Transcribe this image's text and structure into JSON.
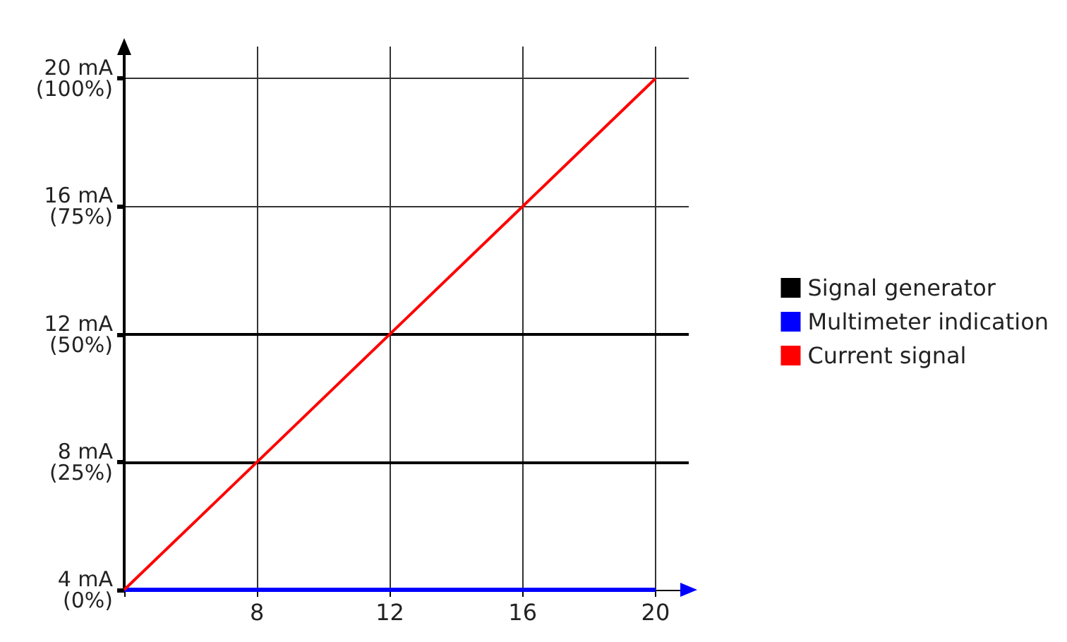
{
  "chart_data": {
    "type": "line",
    "x": [
      4,
      8,
      12,
      16,
      20
    ],
    "series": [
      {
        "name": "Signal generator",
        "color": "#000000",
        "values": [
          null,
          null,
          null,
          null,
          null
        ]
      },
      {
        "name": "Multimeter indication",
        "color": "#0000ff",
        "values": [
          4,
          4,
          4,
          4,
          4
        ]
      },
      {
        "name": "Current signal",
        "color": "#ff0000",
        "values": [
          4,
          8,
          12,
          16,
          20
        ]
      }
    ],
    "xlim": [
      4,
      21
    ],
    "ylim": [
      4,
      21
    ],
    "xticks": [
      {
        "value": 4,
        "label": null
      },
      8,
      12,
      16,
      20
    ],
    "yticks": [
      {
        "value": 4,
        "label": "4 mA"
      },
      {
        "value": 8,
        "label": "8 mA"
      },
      {
        "value": 12,
        "label": "12 mA"
      },
      {
        "value": 16,
        "label": "16 mA"
      },
      {
        "value": 20,
        "label": "20 mA"
      }
    ],
    "y2lim": [
      0,
      106.25
    ],
    "y2ticks": [
      {
        "value": 0,
        "label": "(0%)"
      },
      {
        "value": 25,
        "label": "(25%)"
      },
      {
        "value": 50,
        "label": "(50%)"
      },
      {
        "value": 75,
        "label": "(75%)"
      },
      {
        "value": 100,
        "label": "(100%)"
      }
    ],
    "ref_lines": [
      {
        "axis": "y",
        "value": 8,
        "label": null,
        "color": "#000000"
      },
      {
        "axis": "y",
        "value": 12,
        "label": null,
        "color": "#000000"
      }
    ],
    "grid": true,
    "legend": "right",
    "marker": "none",
    "line_style": "solid"
  }
}
